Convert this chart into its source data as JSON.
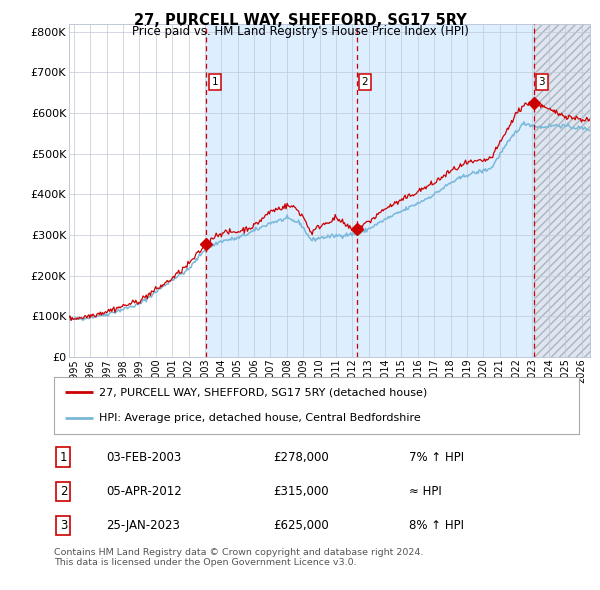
{
  "title": "27, PURCELL WAY, SHEFFORD, SG17 5RY",
  "subtitle": "Price paid vs. HM Land Registry's House Price Index (HPI)",
  "ylabel_ticks": [
    "£0",
    "£100K",
    "£200K",
    "£300K",
    "£400K",
    "£500K",
    "£600K",
    "£700K",
    "£800K"
  ],
  "ytick_values": [
    0,
    100000,
    200000,
    300000,
    400000,
    500000,
    600000,
    700000,
    800000
  ],
  "ylim": [
    0,
    820000
  ],
  "xlim_start": 1994.7,
  "xlim_end": 2026.5,
  "sale_dates": [
    2003.09,
    2012.27,
    2023.07
  ],
  "sale_prices": [
    278000,
    315000,
    625000
  ],
  "sale_labels": [
    "1",
    "2",
    "3"
  ],
  "hpi_line_color": "#7ab8d9",
  "price_line_color": "#cc0000",
  "sale_marker_color": "#cc0000",
  "dashed_line_color": "#cc0000",
  "shade_color": "#ddeeff",
  "hatch_color": "#c8d0dc",
  "grid_color": "#c0c8d8",
  "background_color": "#ffffff",
  "legend_label_price": "27, PURCELL WAY, SHEFFORD, SG17 5RY (detached house)",
  "legend_label_hpi": "HPI: Average price, detached house, Central Bedfordshire",
  "table_rows": [
    {
      "num": "1",
      "date": "03-FEB-2003",
      "price": "£278,000",
      "hpi": "7% ↑ HPI"
    },
    {
      "num": "2",
      "date": "05-APR-2012",
      "price": "£315,000",
      "hpi": "≈ HPI"
    },
    {
      "num": "3",
      "date": "25-JAN-2023",
      "price": "£625,000",
      "hpi": "8% ↑ HPI"
    }
  ],
  "footer": "Contains HM Land Registry data © Crown copyright and database right 2024.\nThis data is licensed under the Open Government Licence v3.0."
}
